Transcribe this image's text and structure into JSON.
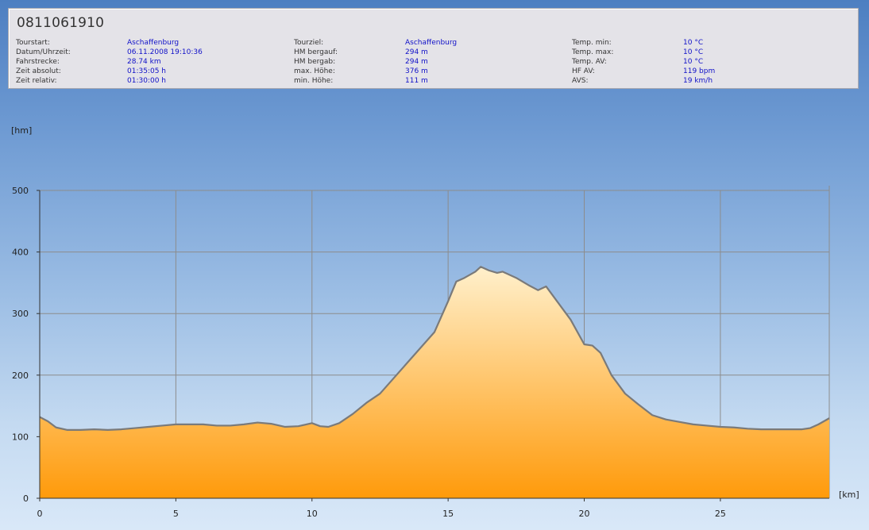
{
  "header": {
    "title": "0811061910",
    "rows": [
      [
        {
          "label": "Tourstart:",
          "value": "Aschaffenburg"
        },
        {
          "label": "Tourziel:",
          "value": "Aschaffenburg"
        },
        {
          "label": "Temp. min:",
          "value": "10 °C"
        }
      ],
      [
        {
          "label": "Datum/Uhrzeit:",
          "value": "06.11.2008 19:10:36"
        },
        {
          "label": "HM bergauf:",
          "value": "294 m"
        },
        {
          "label": "Temp. max:",
          "value": "10 °C"
        }
      ],
      [
        {
          "label": "Fahrstrecke:",
          "value": "28.74 km"
        },
        {
          "label": "HM bergab:",
          "value": "294 m"
        },
        {
          "label": "Temp. AV:",
          "value": "10 °C"
        }
      ],
      [
        {
          "label": "Zeit absolut:",
          "value": "01:35:05 h"
        },
        {
          "label": "max. Höhe:",
          "value": "376 m"
        },
        {
          "label": "HF AV:",
          "value": "119 bpm"
        }
      ],
      [
        {
          "label": "Zeit relativ:",
          "value": "01:30:00 h"
        },
        {
          "label": "min. Höhe:",
          "value": "111 m"
        },
        {
          "label": "AVS:",
          "value": "19 km/h"
        }
      ]
    ]
  },
  "chart_data": {
    "type": "area",
    "ylabel": "[hm]",
    "xlabel": "[km]",
    "xlim": [
      0,
      29
    ],
    "ylim": [
      0,
      500
    ],
    "xticks": [
      0,
      5,
      10,
      15,
      20,
      25
    ],
    "yticks": [
      0,
      100,
      200,
      300,
      400,
      500
    ],
    "grid": true,
    "colors": {
      "fill_top": "#fff0cc",
      "fill_bottom": "#ff9a0a",
      "line": "#7a7a7a",
      "grid": "#8c8c8c",
      "axis": "#333333"
    },
    "x": [
      0,
      0.3,
      0.6,
      1,
      1.5,
      2,
      2.5,
      3,
      3.5,
      4,
      4.5,
      5,
      5.5,
      6,
      6.5,
      7,
      7.5,
      8,
      8.5,
      9,
      9.5,
      10,
      10.3,
      10.6,
      11,
      11.5,
      12,
      12.5,
      13,
      13.5,
      14,
      14.5,
      15,
      15.3,
      15.6,
      16,
      16.2,
      16.5,
      16.8,
      17,
      17.5,
      18,
      18.3,
      18.6,
      19,
      19.5,
      20,
      20.3,
      20.6,
      21,
      21.5,
      22,
      22.5,
      23,
      23.5,
      24,
      24.5,
      25,
      25.5,
      26,
      26.5,
      27,
      27.5,
      28,
      28.3,
      28.6,
      29
    ],
    "y": [
      132,
      125,
      115,
      111,
      111,
      112,
      111,
      112,
      114,
      116,
      118,
      120,
      120,
      120,
      118,
      118,
      120,
      123,
      121,
      116,
      117,
      122,
      117,
      116,
      122,
      137,
      155,
      170,
      195,
      220,
      245,
      270,
      320,
      352,
      358,
      368,
      376,
      370,
      366,
      368,
      358,
      345,
      338,
      344,
      320,
      290,
      250,
      248,
      236,
      200,
      170,
      152,
      135,
      128,
      124,
      120,
      118,
      116,
      115,
      113,
      112,
      112,
      112,
      112,
      114,
      120,
      130
    ]
  }
}
